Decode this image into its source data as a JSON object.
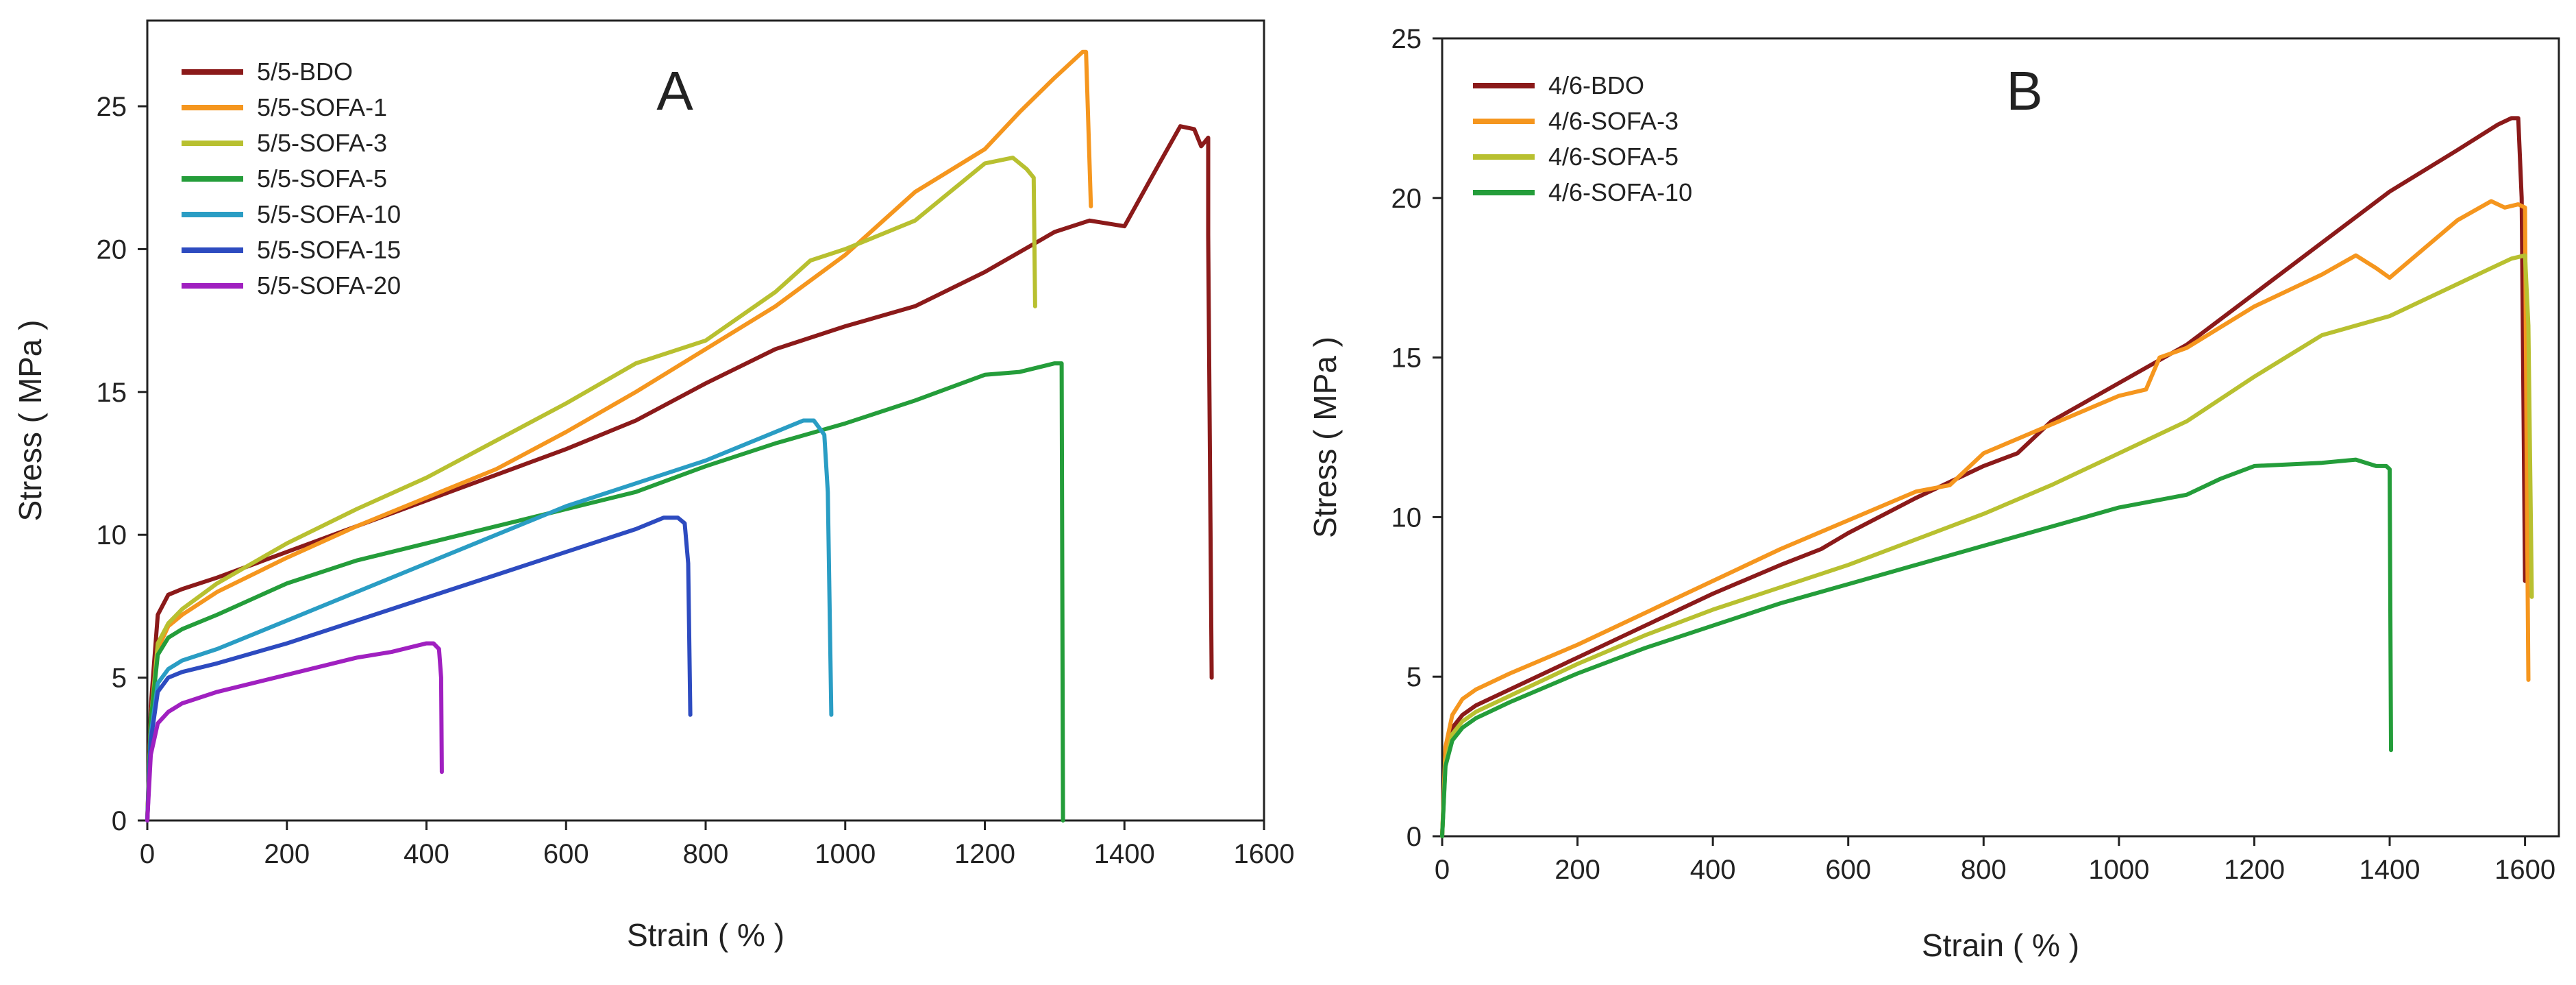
{
  "chart_data": [
    {
      "type": "line",
      "panel_label": "A",
      "xlabel": "Strain ( % )",
      "ylabel": "Stress ( MPa )",
      "xlim": [
        0,
        1600
      ],
      "ylim": [
        0,
        28
      ],
      "xticks": [
        0,
        200,
        400,
        600,
        800,
        1000,
        1200,
        1400,
        1600
      ],
      "yticks": [
        0,
        5,
        10,
        15,
        20,
        25
      ],
      "grid": false,
      "legend_position": "top-left",
      "series": [
        {
          "name": "5/5-BDO",
          "color": "#8B1A1A",
          "x": [
            0,
            5,
            15,
            30,
            50,
            100,
            200,
            300,
            400,
            500,
            600,
            700,
            800,
            900,
            1000,
            1100,
            1200,
            1300,
            1350,
            1400,
            1450,
            1480,
            1500,
            1510,
            1520,
            1520,
            1525
          ],
          "y": [
            0,
            4,
            7.2,
            7.9,
            8.1,
            8.5,
            9.4,
            10.3,
            11.2,
            12.1,
            13.0,
            14.0,
            15.3,
            16.5,
            17.3,
            18.0,
            19.2,
            20.6,
            21.0,
            20.8,
            23.0,
            24.3,
            24.2,
            23.6,
            23.9,
            20.5,
            5.0
          ]
        },
        {
          "name": "5/5-SOFA-1",
          "color": "#F5961E",
          "x": [
            0,
            5,
            15,
            30,
            50,
            100,
            200,
            300,
            400,
            500,
            600,
            700,
            800,
            900,
            1000,
            1100,
            1200,
            1250,
            1300,
            1340,
            1345,
            1352
          ],
          "y": [
            0,
            3.5,
            6.0,
            6.8,
            7.2,
            8.0,
            9.2,
            10.3,
            11.3,
            12.3,
            13.6,
            15.0,
            16.5,
            18.0,
            19.8,
            22.0,
            23.5,
            24.8,
            26.0,
            26.9,
            26.9,
            21.5
          ]
        },
        {
          "name": "5/5-SOFA-3",
          "color": "#B8C030",
          "x": [
            0,
            5,
            15,
            30,
            50,
            100,
            200,
            300,
            400,
            500,
            600,
            700,
            800,
            900,
            950,
            1000,
            1100,
            1150,
            1200,
            1240,
            1260,
            1270,
            1272
          ],
          "y": [
            0,
            3.5,
            6.2,
            6.9,
            7.4,
            8.3,
            9.7,
            10.9,
            12.0,
            13.3,
            14.6,
            16.0,
            16.8,
            18.5,
            19.6,
            20.0,
            21.0,
            22.0,
            23.0,
            23.2,
            22.8,
            22.5,
            18.0
          ]
        },
        {
          "name": "5/5-SOFA-5",
          "color": "#249D3A",
          "x": [
            0,
            5,
            15,
            30,
            50,
            100,
            200,
            300,
            400,
            500,
            600,
            700,
            800,
            900,
            1000,
            1100,
            1200,
            1250,
            1300,
            1310,
            1312
          ],
          "y": [
            0,
            3.5,
            5.8,
            6.4,
            6.7,
            7.2,
            8.3,
            9.1,
            9.7,
            10.3,
            10.9,
            11.5,
            12.4,
            13.2,
            13.9,
            14.7,
            15.6,
            15.7,
            16.0,
            16.0,
            0
          ]
        },
        {
          "name": "5/5-SOFA-10",
          "color": "#2A9DC4",
          "x": [
            0,
            5,
            15,
            30,
            50,
            100,
            200,
            300,
            400,
            500,
            600,
            700,
            800,
            900,
            940,
            955,
            970,
            975,
            980
          ],
          "y": [
            0,
            3.0,
            4.8,
            5.3,
            5.6,
            6.0,
            7.0,
            8.0,
            9.0,
            10.0,
            11.0,
            11.8,
            12.6,
            13.6,
            14.0,
            14.0,
            13.5,
            11.5,
            3.7
          ]
        },
        {
          "name": "5/5-SOFA-15",
          "color": "#2D4BC0",
          "x": [
            0,
            5,
            15,
            30,
            50,
            100,
            200,
            300,
            400,
            500,
            600,
            700,
            740,
            760,
            770,
            775,
            778
          ],
          "y": [
            0,
            2.8,
            4.5,
            5.0,
            5.2,
            5.5,
            6.2,
            7.0,
            7.8,
            8.6,
            9.4,
            10.2,
            10.6,
            10.6,
            10.4,
            9.0,
            3.7
          ]
        },
        {
          "name": "5/5-SOFA-20",
          "color": "#A020C0",
          "x": [
            0,
            5,
            15,
            30,
            50,
            100,
            150,
            200,
            250,
            300,
            350,
            400,
            410,
            418,
            421,
            422
          ],
          "y": [
            0,
            2.3,
            3.4,
            3.8,
            4.1,
            4.5,
            4.8,
            5.1,
            5.4,
            5.7,
            5.9,
            6.2,
            6.2,
            6.0,
            5.0,
            1.7
          ]
        }
      ]
    },
    {
      "type": "line",
      "panel_label": "B",
      "xlabel": "Strain ( % )",
      "ylabel": "Stress ( MPa )",
      "xlim": [
        0,
        1650
      ],
      "ylim": [
        0,
        25
      ],
      "xticks": [
        0,
        200,
        400,
        600,
        800,
        1000,
        1200,
        1400,
        1600
      ],
      "yticks": [
        0,
        5,
        10,
        15,
        20,
        25
      ],
      "grid": false,
      "legend_position": "top-left",
      "series": [
        {
          "name": "4/6-BDO",
          "color": "#8B1A1A",
          "x": [
            0,
            5,
            15,
            30,
            50,
            100,
            200,
            300,
            400,
            500,
            560,
            600,
            700,
            800,
            850,
            900,
            1000,
            1100,
            1200,
            1300,
            1400,
            1500,
            1560,
            1580,
            1590,
            1595,
            1600
          ],
          "y": [
            0,
            2.5,
            3.4,
            3.8,
            4.1,
            4.6,
            5.6,
            6.6,
            7.6,
            8.5,
            9.0,
            9.5,
            10.6,
            11.6,
            12.0,
            13.0,
            14.2,
            15.4,
            17.0,
            18.6,
            20.2,
            21.5,
            22.3,
            22.5,
            22.5,
            20.0,
            8.0
          ]
        },
        {
          "name": "4/6-SOFA-3",
          "color": "#F5961E",
          "x": [
            0,
            5,
            15,
            30,
            50,
            100,
            200,
            300,
            400,
            500,
            600,
            700,
            750,
            800,
            900,
            1000,
            1040,
            1060,
            1100,
            1200,
            1300,
            1350,
            1380,
            1400,
            1500,
            1550,
            1570,
            1590,
            1600,
            1603,
            1605
          ],
          "y": [
            0,
            2.8,
            3.8,
            4.3,
            4.6,
            5.1,
            6.0,
            7.0,
            8.0,
            9.0,
            9.9,
            10.8,
            11.0,
            12.0,
            12.9,
            13.8,
            14.0,
            15.0,
            15.3,
            16.6,
            17.6,
            18.2,
            17.8,
            17.5,
            19.3,
            19.9,
            19.7,
            19.8,
            19.7,
            10.0,
            4.9
          ]
        },
        {
          "name": "4/6-SOFA-5",
          "color": "#B8C030",
          "x": [
            0,
            5,
            15,
            30,
            50,
            100,
            200,
            300,
            400,
            500,
            600,
            700,
            800,
            900,
            1000,
            1100,
            1200,
            1300,
            1400,
            1500,
            1550,
            1580,
            1600,
            1605,
            1610
          ],
          "y": [
            0,
            2.3,
            3.2,
            3.6,
            3.9,
            4.4,
            5.4,
            6.3,
            7.1,
            7.8,
            8.5,
            9.3,
            10.1,
            11.0,
            12.0,
            13.0,
            14.4,
            15.7,
            16.3,
            17.3,
            17.8,
            18.1,
            18.2,
            16.0,
            7.5
          ]
        },
        {
          "name": "4/6-SOFA-10",
          "color": "#249D3A",
          "x": [
            0,
            5,
            15,
            30,
            50,
            100,
            200,
            300,
            400,
            500,
            600,
            700,
            800,
            900,
            1000,
            1100,
            1150,
            1200,
            1300,
            1350,
            1380,
            1395,
            1400,
            1402
          ],
          "y": [
            0,
            2.2,
            3.0,
            3.4,
            3.7,
            4.2,
            5.1,
            5.9,
            6.6,
            7.3,
            7.9,
            8.5,
            9.1,
            9.7,
            10.3,
            10.7,
            11.2,
            11.6,
            11.7,
            11.8,
            11.6,
            11.6,
            11.5,
            2.7
          ]
        }
      ]
    }
  ]
}
